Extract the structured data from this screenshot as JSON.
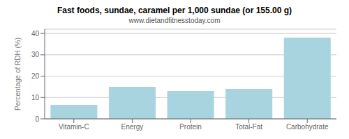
{
  "chart_data": {
    "type": "bar",
    "title": "Fast foods, sundae, caramel per 1,000 sundae (or 155.00 g)",
    "subtitle": "www.dietandfitnesstoday.com",
    "categories": [
      "Vitamin-C",
      "Energy",
      "Protein",
      "Total-Fat",
      "Carbohydrate"
    ],
    "values": [
      6.5,
      15.0,
      13.0,
      14.0,
      38.0
    ],
    "color": "#a8d4e0",
    "ylabel": "Percentage of RDH (%)",
    "ylim": [
      0,
      42
    ],
    "yticks": [
      0,
      10,
      20,
      30,
      40
    ],
    "grid": true
  }
}
